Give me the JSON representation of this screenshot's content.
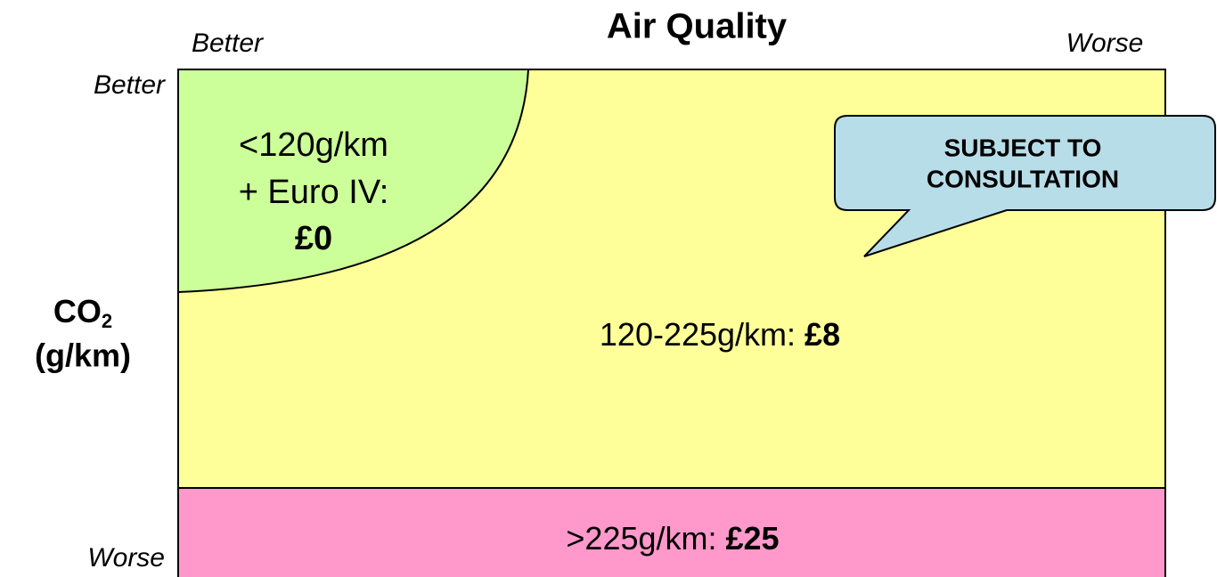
{
  "title": "Air Quality",
  "x_axis": {
    "left": "Better",
    "right": "Worse"
  },
  "y_axis": {
    "top": "Better",
    "bottom": "Worse",
    "title": {
      "main": "CO",
      "subscript": "2",
      "unit": "(g/km)"
    }
  },
  "regions": {
    "green": {
      "lines": [
        "<120g/km",
        "+ Euro IV:"
      ],
      "charge": "£0"
    },
    "yellow": {
      "label": "120-225g/km: ",
      "charge": "£8"
    },
    "pink": {
      "label": ">225g/km: ",
      "charge": "£25"
    }
  },
  "callout": {
    "lines": [
      "SUBJECT TO",
      "CONSULTATION"
    ]
  }
}
